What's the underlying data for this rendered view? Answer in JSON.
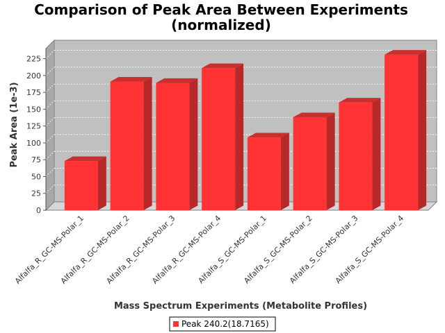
{
  "chart_data": {
    "type": "bar",
    "title": [
      "Comparison of Peak Area Between Experiments",
      "(normalized)"
    ],
    "xlabel": "Mass Spectrum Experiments (Metabolite Profiles)",
    "ylabel": "Peak Area (1e-3)",
    "ylim": [
      0,
      240
    ],
    "yticks": [
      0,
      25,
      50,
      75,
      100,
      125,
      150,
      175,
      200,
      225
    ],
    "grid": true,
    "legend_position": "bottom",
    "categories": [
      "Alfalfa_R_GC-MS-Polar_1",
      "Alfalfa_R_GC-MS-Polar_2",
      "Alfalfa_R_GC-MS-Polar_3",
      "Alfalfa_R_GC-MS-Polar_4",
      "Alfalfa_S_GC-MS-Polar_1",
      "Alfalfa_S_GC-MS-Polar_2",
      "Alfalfa_S_GC-MS-Polar_3",
      "Alfalfa_S_GC-MS-Polar_4"
    ],
    "series": [
      {
        "name": "Peak 240.2(18.7165)",
        "color": "#ff3333",
        "values": [
          73,
          191,
          189,
          211,
          108,
          138,
          160,
          231
        ]
      }
    ]
  }
}
